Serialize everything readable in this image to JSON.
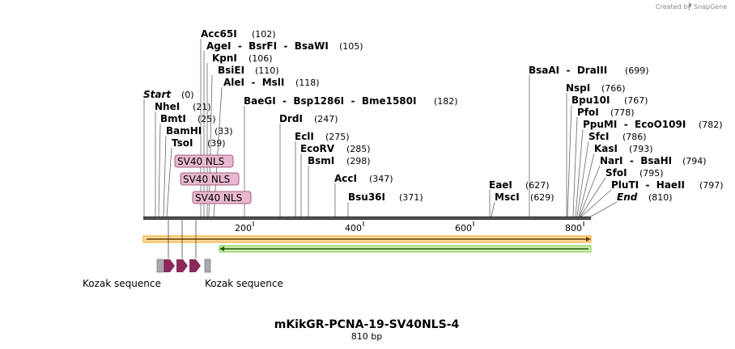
{
  "credit": {
    "prefix": "Created by",
    "brand": "SnapGene"
  },
  "title": "mKikGR-PCNA-19-SV40NLS-4",
  "length_label": "810 bp",
  "scale": {
    "ticks": [
      "200",
      "400",
      "600",
      "800"
    ]
  },
  "left_sites": [
    {
      "name": "Acc65I",
      "pos": "(102)"
    },
    {
      "name": "AgeI  -  BsrFI  -  BsaWI",
      "pos": "(105)"
    },
    {
      "name": "KpnI",
      "pos": "(106)"
    },
    {
      "name": "BsiEI",
      "pos": "(110)"
    },
    {
      "name": "AleI  -  MslI",
      "pos": "(118)"
    },
    {
      "name": "Start",
      "pos": "(0)"
    },
    {
      "name": "NheI",
      "pos": "(21)"
    },
    {
      "name": "BmtI",
      "pos": "(25)"
    },
    {
      "name": "BamHI",
      "pos": "(33)"
    },
    {
      "name": "TsoI",
      "pos": "(39)"
    }
  ],
  "mid_sites": [
    {
      "name": "BaeGI  -  Bsp1286I  -  Bme1580I",
      "pos": "(182)"
    },
    {
      "name": "DrdI",
      "pos": "(247)"
    },
    {
      "name": "EclI",
      "pos": "(275)"
    },
    {
      "name": "EcoRV",
      "pos": "(285)"
    },
    {
      "name": "BsmI",
      "pos": "(298)"
    },
    {
      "name": "AccI",
      "pos": "(347)"
    },
    {
      "name": "Bsu36I",
      "pos": "(371)"
    },
    {
      "name": "EaeI",
      "pos": "(627)"
    },
    {
      "name": "MscI",
      "pos": "(629)"
    }
  ],
  "right_sites": [
    {
      "name": "BsaAI  -  DraIII",
      "pos": "(699)"
    },
    {
      "name": "NspI",
      "pos": "(766)"
    },
    {
      "name": "Bpu10I",
      "pos": "(767)"
    },
    {
      "name": "PfoI",
      "pos": "(778)"
    },
    {
      "name": "PpuMI  -  EcoO109I",
      "pos": "(782)"
    },
    {
      "name": "SfcI",
      "pos": "(786)"
    },
    {
      "name": "KasI",
      "pos": "(793)"
    },
    {
      "name": "NarI  -  BsaHI",
      "pos": "(794)"
    },
    {
      "name": "SfoI",
      "pos": "(795)"
    },
    {
      "name": "PluTI  -  HaeII",
      "pos": "(797)"
    },
    {
      "name": "End",
      "pos": "(810)"
    }
  ],
  "nls_features": [
    "SV40 NLS",
    "SV40 NLS",
    "SV40 NLS"
  ],
  "kozak_labels": [
    "Kozak sequence",
    "Kozak sequence"
  ],
  "colors": {
    "orf": "#f5a623",
    "green": "#7ec850",
    "nls_fill": "#e8b8cf",
    "nls_stroke": "#8a3a64",
    "arrow": "#8b2a5a",
    "kozak": "#a9a9b4"
  }
}
